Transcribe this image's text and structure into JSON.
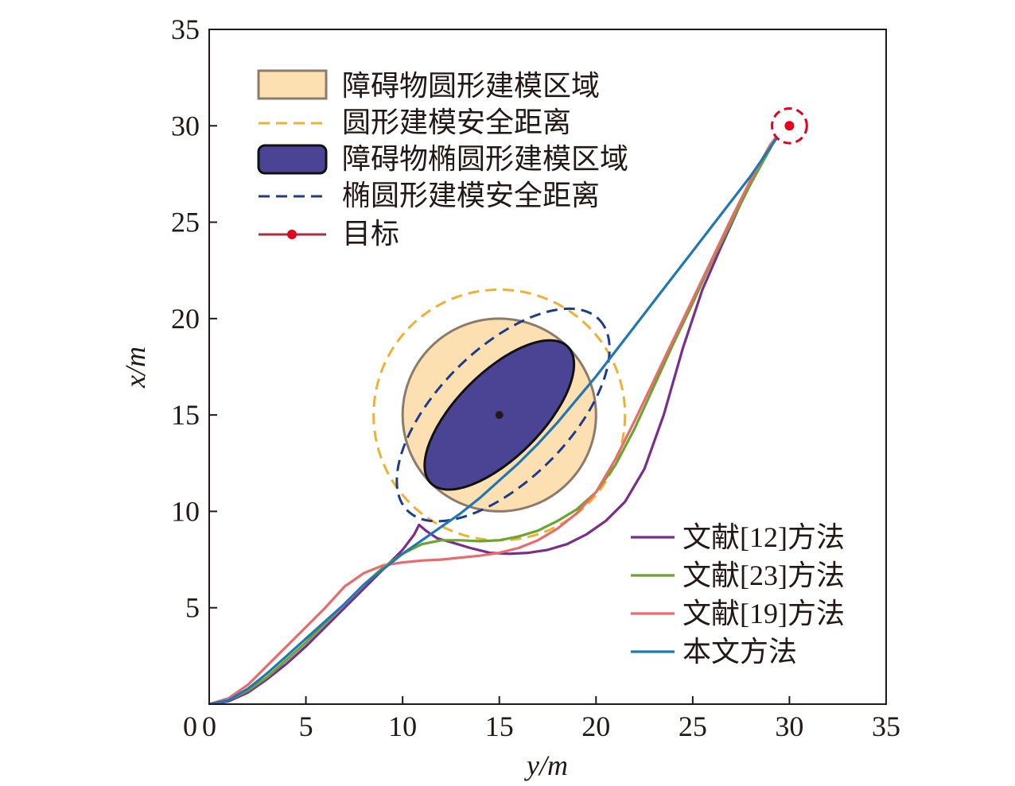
{
  "chart_data": {
    "type": "line",
    "xlabel": "y/m",
    "ylabel": "x/m",
    "xlim": [
      0,
      35
    ],
    "ylim": [
      0,
      35
    ],
    "xticks": [
      "0",
      "5",
      "10",
      "15",
      "20",
      "25",
      "30",
      "35"
    ],
    "yticks": [
      "5",
      "10",
      "15",
      "20",
      "25",
      "30",
      "35"
    ],
    "obstacle_circle": {
      "center": [
        15,
        15
      ],
      "radius": 5,
      "label": "障碍物圆形建模区域",
      "fill": "#fce0b2",
      "stroke": "#8c7b6b"
    },
    "circle_safety_distance": {
      "center": [
        15,
        15
      ],
      "radius": 6.5,
      "label": "圆形建模安全距离",
      "color": "#f0b030"
    },
    "obstacle_ellipse": {
      "center": [
        15,
        15
      ],
      "semi_major": 5.0,
      "semi_minor": 2.2,
      "angle_deg": 45,
      "label": "障碍物椭圆形建模区域",
      "fill": "#4b4495",
      "stroke": "#111111"
    },
    "ellipse_safety_distance": {
      "center": [
        15.2,
        15
      ],
      "semi_major": 7.0,
      "semi_minor": 3.4,
      "angle_deg": 45,
      "label": "椭圆形建模安全距离",
      "color": "#1f3b8c"
    },
    "target": {
      "point": [
        30,
        30
      ],
      "ring_radius": 0.9,
      "label": "目标",
      "color": "#e6001f"
    },
    "series": [
      {
        "name": "文献[12]方法",
        "color": "#7b2d8e",
        "points": [
          [
            0,
            0
          ],
          [
            1,
            0.15
          ],
          [
            2,
            0.6
          ],
          [
            3,
            1.3
          ],
          [
            4,
            2.1
          ],
          [
            5,
            3.0
          ],
          [
            6,
            4.0
          ],
          [
            7,
            5.0
          ],
          [
            8,
            6.0
          ],
          [
            9,
            7.0
          ],
          [
            10,
            8.0
          ],
          [
            10.6,
            8.8
          ],
          [
            10.85,
            9.3
          ],
          [
            11.2,
            9.0
          ],
          [
            11.8,
            8.6
          ],
          [
            12.5,
            8.4
          ],
          [
            13.5,
            8.1
          ],
          [
            14.5,
            7.85
          ],
          [
            15.5,
            7.8
          ],
          [
            16.5,
            7.85
          ],
          [
            17.5,
            8.0
          ],
          [
            18.5,
            8.3
          ],
          [
            19.5,
            8.8
          ],
          [
            20.5,
            9.5
          ],
          [
            21.5,
            10.5
          ],
          [
            22.5,
            12.2
          ],
          [
            23.5,
            15.0
          ],
          [
            24.5,
            18.5
          ],
          [
            25.5,
            21.5
          ],
          [
            26.5,
            23.8
          ],
          [
            27.5,
            26.0
          ],
          [
            28.5,
            28.0
          ],
          [
            29.3,
            29.4
          ]
        ]
      },
      {
        "name": "文献[23]方法",
        "color": "#6aa531",
        "points": [
          [
            0,
            0
          ],
          [
            1,
            0.2
          ],
          [
            2,
            0.7
          ],
          [
            3,
            1.4
          ],
          [
            4,
            2.3
          ],
          [
            5,
            3.2
          ],
          [
            6,
            4.2
          ],
          [
            7,
            5.2
          ],
          [
            8,
            6.2
          ],
          [
            9,
            7.1
          ],
          [
            10,
            7.8
          ],
          [
            11,
            8.3
          ],
          [
            12,
            8.5
          ],
          [
            13,
            8.5
          ],
          [
            14,
            8.45
          ],
          [
            15,
            8.5
          ],
          [
            16,
            8.7
          ],
          [
            17,
            9.0
          ],
          [
            18,
            9.5
          ],
          [
            19,
            10.1
          ],
          [
            20,
            11.0
          ],
          [
            21,
            12.4
          ],
          [
            22,
            14.3
          ],
          [
            23,
            16.5
          ],
          [
            24,
            18.7
          ],
          [
            25,
            20.8
          ],
          [
            26,
            23.0
          ],
          [
            27,
            25.0
          ],
          [
            28,
            27.0
          ],
          [
            29,
            28.8
          ],
          [
            29.3,
            29.4
          ]
        ]
      },
      {
        "name": "文献[19]方法",
        "color": "#ea6b6b",
        "points": [
          [
            0,
            0
          ],
          [
            1,
            0.3
          ],
          [
            2,
            1.0
          ],
          [
            3,
            2.0
          ],
          [
            4,
            3.0
          ],
          [
            5,
            4.0
          ],
          [
            6,
            5.0
          ],
          [
            7,
            6.1
          ],
          [
            8,
            6.8
          ],
          [
            9,
            7.2
          ],
          [
            10,
            7.35
          ],
          [
            11,
            7.45
          ],
          [
            12,
            7.5
          ],
          [
            13,
            7.6
          ],
          [
            14,
            7.7
          ],
          [
            15,
            7.85
          ],
          [
            16,
            8.1
          ],
          [
            17,
            8.5
          ],
          [
            18,
            9.1
          ],
          [
            19,
            9.9
          ],
          [
            20,
            11.0
          ],
          [
            21,
            12.7
          ],
          [
            22,
            14.7
          ],
          [
            23,
            16.8
          ],
          [
            24,
            18.9
          ],
          [
            25,
            21.0
          ],
          [
            26,
            23.1
          ],
          [
            27,
            25.2
          ],
          [
            28,
            27.2
          ],
          [
            29,
            29.0
          ],
          [
            29.3,
            29.4
          ]
        ]
      },
      {
        "name": "本文方法",
        "color": "#1f77b4",
        "points": [
          [
            0,
            0
          ],
          [
            1,
            0.2
          ],
          [
            2,
            0.8
          ],
          [
            3,
            1.6
          ],
          [
            4,
            2.5
          ],
          [
            5,
            3.4
          ],
          [
            6,
            4.3
          ],
          [
            7,
            5.2
          ],
          [
            8,
            6.2
          ],
          [
            9,
            7.0
          ],
          [
            10,
            7.8
          ],
          [
            11,
            8.5
          ],
          [
            12,
            9.2
          ],
          [
            13,
            9.9
          ],
          [
            14,
            10.7
          ],
          [
            15,
            11.6
          ],
          [
            16,
            12.5
          ],
          [
            17,
            13.5
          ],
          [
            18,
            14.6
          ],
          [
            19,
            15.8
          ],
          [
            20,
            17.0
          ],
          [
            21,
            18.3
          ],
          [
            22,
            19.6
          ],
          [
            23,
            20.9
          ],
          [
            24,
            22.2
          ],
          [
            25,
            23.5
          ],
          [
            26,
            24.8
          ],
          [
            27,
            26.1
          ],
          [
            28,
            27.4
          ],
          [
            29.3,
            29.3
          ]
        ]
      }
    ]
  }
}
